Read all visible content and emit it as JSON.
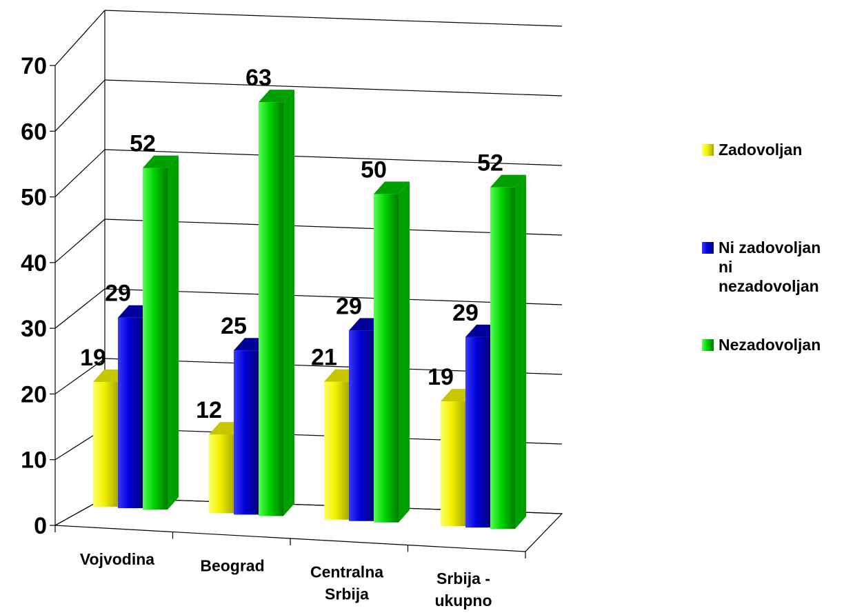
{
  "chart_data": {
    "type": "bar",
    "categories": [
      "Vojvodina",
      "Beograd",
      "Centralna Srbija",
      "Srbija - ukupno"
    ],
    "series": [
      {
        "name": "Zadovoljan",
        "values": [
          19,
          12,
          21,
          19
        ],
        "color": "#e6e600"
      },
      {
        "name": "Ni zadovoljan ni nezadovoljan",
        "values": [
          29,
          25,
          29,
          29
        ],
        "color": "#0000c8"
      },
      {
        "name": "Nezadovoljan",
        "values": [
          52,
          63,
          50,
          52
        ],
        "color": "#00cc00"
      }
    ],
    "yticks": [
      "0",
      "10",
      "20",
      "30",
      "40",
      "50",
      "60",
      "70"
    ],
    "ylim": [
      0,
      70
    ],
    "grid": true,
    "legend": "right",
    "three_d": true
  }
}
